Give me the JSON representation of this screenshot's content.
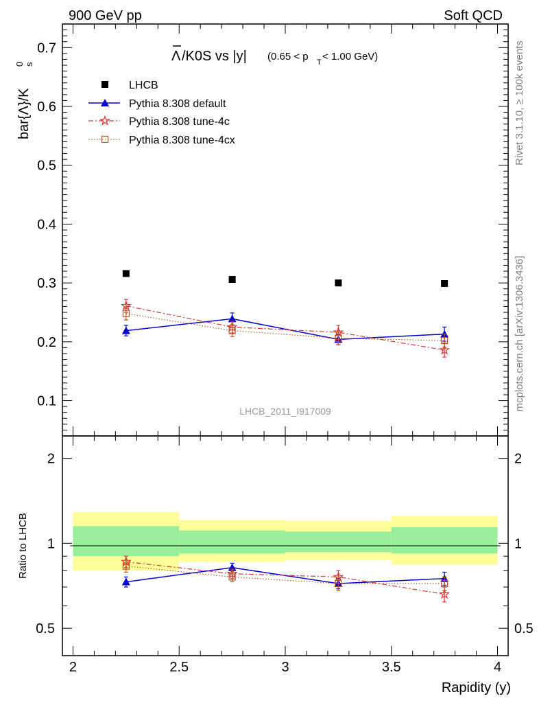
{
  "header": {
    "left": "900 GeV pp",
    "right": "Soft QCD"
  },
  "side_labels": {
    "rivet": "Rivet 3.1.10, ≥ 100k events",
    "mcplots": "mcplots.cern.ch [arXiv:1306.3436]"
  },
  "watermark": "LHCB_2011_I917009",
  "title_parts": {
    "bar": "Λ",
    "main": "/K0S vs |y|",
    "cut_lead": "(0.65 < p",
    "cut_sub": "T",
    "cut_tail": " < 1.00 GeV)"
  },
  "ylabel_parts": {
    "main": "bar{Λ}/K",
    "sup": "0",
    "sub": "s"
  },
  "ratio_ylabel": "Ratio to LHCB",
  "xlabel": "Rapidity (y)",
  "colors": {
    "data": "#000000",
    "default": "#0000cc",
    "tune4c": "#dd3333",
    "tune4cx": "#bb5522",
    "band_outer": "#ffff99",
    "band_inner": "#99ee99"
  },
  "chart_data": [
    {
      "type": "scatter",
      "panel": "main",
      "ylim": [
        0.04,
        0.74
      ],
      "xlim": [
        1.95,
        4.05
      ],
      "yticks": [
        "0.1",
        "0.2",
        "0.3",
        "0.4",
        "0.5",
        "0.6",
        "0.7"
      ],
      "legend_position": "top-left",
      "series": [
        {
          "name": "LHCB",
          "x": [
            2.25,
            2.75,
            3.25,
            3.75
          ],
          "y": [
            0.316,
            0.306,
            0.3,
            0.299
          ],
          "yerr": [
            0,
            0,
            0,
            0
          ]
        },
        {
          "name": "Pythia 8.308 default",
          "x": [
            2.25,
            2.75,
            3.25,
            3.75
          ],
          "y": [
            0.219,
            0.239,
            0.204,
            0.213
          ],
          "yerr": [
            0.009,
            0.01,
            0.009,
            0.012
          ]
        },
        {
          "name": "Pythia 8.308 tune-4c",
          "x": [
            2.25,
            2.75,
            3.25,
            3.75
          ],
          "y": [
            0.261,
            0.225,
            0.216,
            0.186
          ],
          "yerr": [
            0.011,
            0.01,
            0.012,
            0.012
          ]
        },
        {
          "name": "Pythia 8.308 tune-4cx",
          "x": [
            2.25,
            2.75,
            3.25,
            3.75
          ],
          "y": [
            0.248,
            0.219,
            0.206,
            0.202
          ],
          "yerr": [
            0.011,
            0.01,
            0.011,
            0.011
          ]
        }
      ]
    },
    {
      "type": "scatter",
      "panel": "ratio",
      "ylim": [
        0.4,
        2.4
      ],
      "log_y": true,
      "xlim": [
        1.95,
        4.05
      ],
      "xticks": [
        "2",
        "2.5",
        "3",
        "3.5",
        "4"
      ],
      "yticks": [
        "0.5",
        "1",
        "2"
      ],
      "bands": [
        {
          "x0": 2.0,
          "x1": 2.5,
          "inner": [
            0.9,
            1.15
          ],
          "outer": [
            0.8,
            1.29
          ]
        },
        {
          "x0": 2.5,
          "x1": 3.0,
          "inner": [
            0.92,
            1.11
          ],
          "outer": [
            0.86,
            1.21
          ]
        },
        {
          "x0": 3.0,
          "x1": 3.5,
          "inner": [
            0.93,
            1.1
          ],
          "outer": [
            0.87,
            1.2
          ]
        },
        {
          "x0": 3.5,
          "x1": 4.0,
          "inner": [
            0.92,
            1.14
          ],
          "outer": [
            0.84,
            1.25
          ]
        }
      ],
      "series": [
        {
          "name": "Pythia 8.308 default",
          "x": [
            2.25,
            2.75,
            3.25,
            3.75
          ],
          "y": [
            0.73,
            0.82,
            0.72,
            0.75
          ],
          "yerr": [
            0.03,
            0.03,
            0.03,
            0.04
          ]
        },
        {
          "name": "Pythia 8.308 tune-4c",
          "x": [
            2.25,
            2.75,
            3.25,
            3.75
          ],
          "y": [
            0.86,
            0.78,
            0.76,
            0.66
          ],
          "yerr": [
            0.04,
            0.03,
            0.04,
            0.04
          ]
        },
        {
          "name": "Pythia 8.308 tune-4cx",
          "x": [
            2.25,
            2.75,
            3.25,
            3.75
          ],
          "y": [
            0.83,
            0.76,
            0.72,
            0.72
          ],
          "yerr": [
            0.04,
            0.03,
            0.04,
            0.04
          ]
        }
      ]
    }
  ]
}
